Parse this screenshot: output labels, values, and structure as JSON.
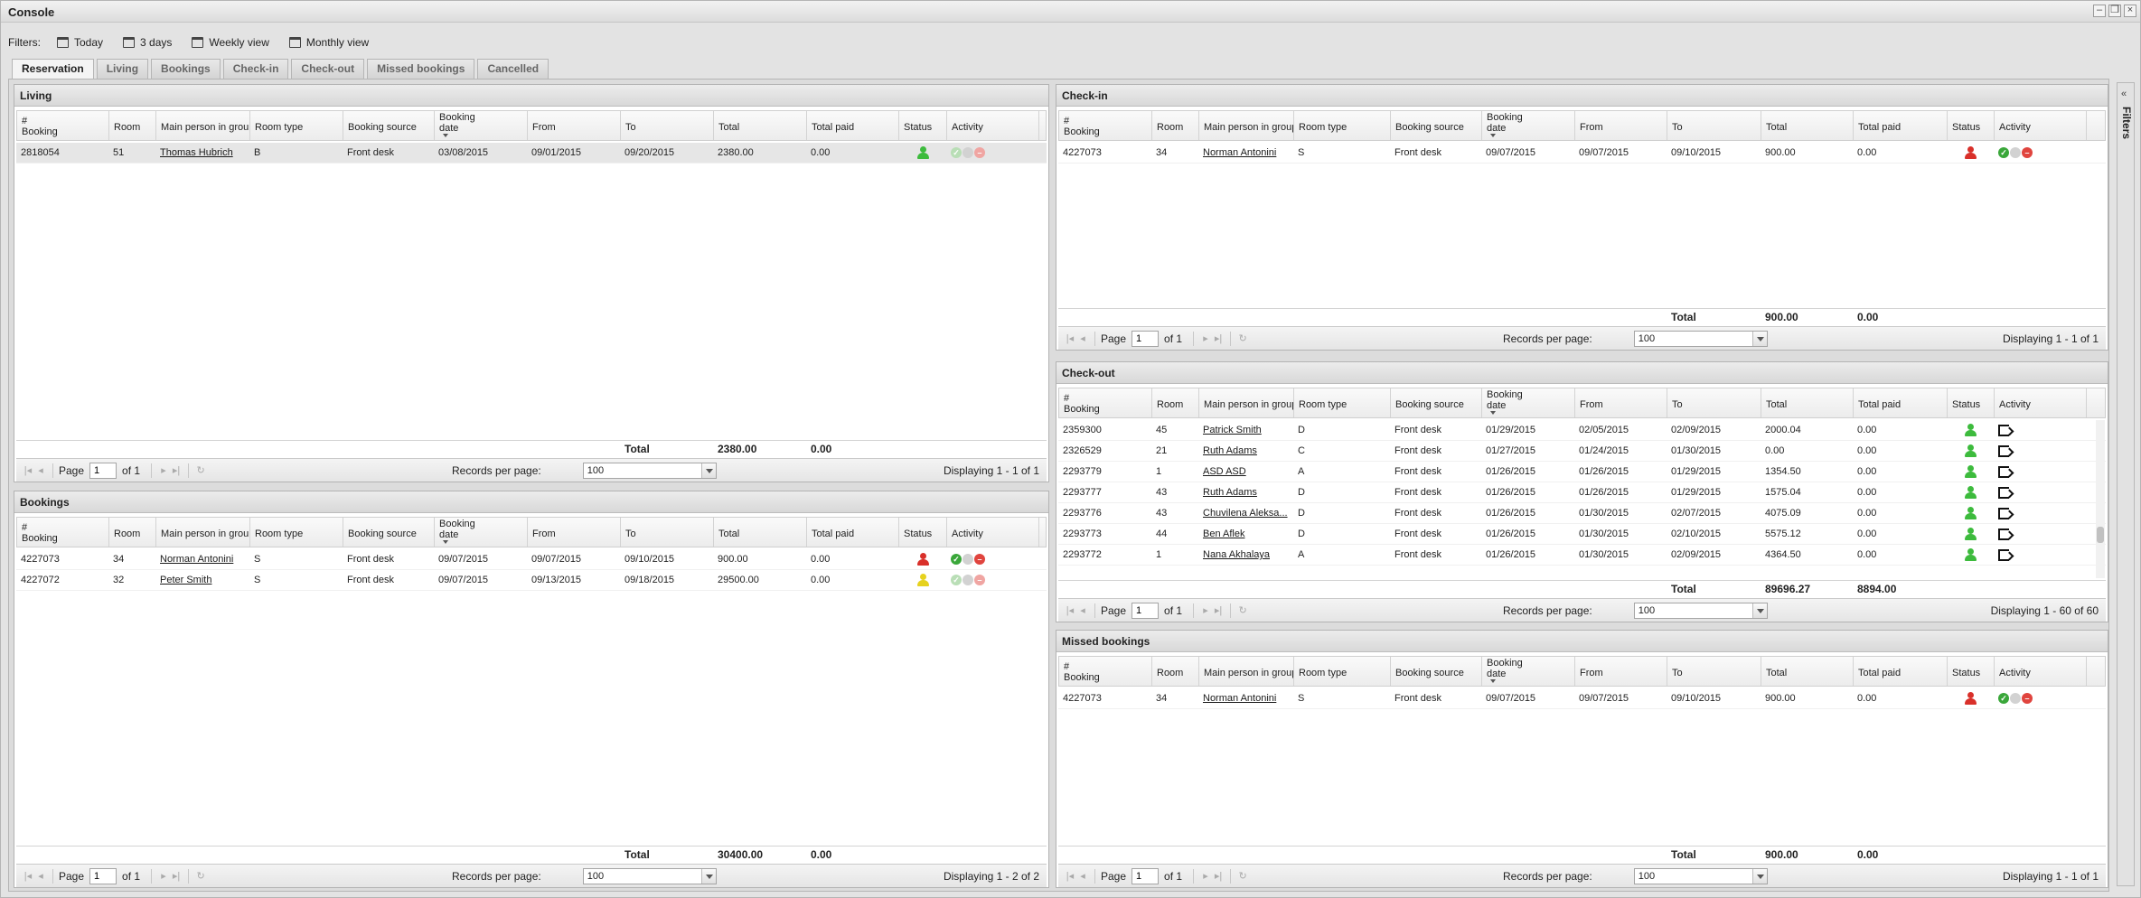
{
  "window": {
    "title": "Console"
  },
  "filters": {
    "label": "Filters:",
    "options": [
      "Today",
      "3 days",
      "Weekly view",
      "Monthly view"
    ]
  },
  "tabs": [
    "Reservation",
    "Living",
    "Bookings",
    "Check-in",
    "Check-out",
    "Missed bookings",
    "Cancelled"
  ],
  "sidebar": {
    "label": "Filters"
  },
  "columns": {
    "booking": [
      "#",
      "Booking"
    ],
    "room": "Room",
    "main_person": "Main person in group",
    "room_type": "Room type",
    "booking_source": "Booking source",
    "booking_date": [
      "Booking",
      "date"
    ],
    "from": "From",
    "to": "To",
    "total": "Total",
    "total_paid": "Total paid",
    "status": "Status",
    "activity": "Activity"
  },
  "pager": {
    "page_label": "Page",
    "rpp_label": "Records per page:",
    "rpp_value": "100",
    "total_label": "Total"
  },
  "panels": {
    "living": {
      "title": "Living",
      "rows": [
        {
          "booking": "2818054",
          "room": "51",
          "person": "Thomas Hubrich",
          "room_type": "B",
          "source": "Front desk",
          "booking_date": "03/08/2015",
          "from": "09/01/2015",
          "to": "09/20/2015",
          "total": "2380.00",
          "paid": "0.00",
          "status": "green",
          "activity": "dim"
        }
      ],
      "total": "2380.00",
      "total_paid": "0.00",
      "page": "1",
      "of": "of 1",
      "displaying": "Displaying 1 - 1 of 1"
    },
    "bookings": {
      "title": "Bookings",
      "rows": [
        {
          "booking": "4227073",
          "room": "34",
          "person": "Norman Antonini",
          "room_type": "S",
          "source": "Front desk",
          "booking_date": "09/07/2015",
          "from": "09/07/2015",
          "to": "09/10/2015",
          "total": "900.00",
          "paid": "0.00",
          "status": "red",
          "activity": "full"
        },
        {
          "booking": "4227072",
          "room": "32",
          "person": "Peter Smith",
          "room_type": "S",
          "source": "Front desk",
          "booking_date": "09/07/2015",
          "from": "09/13/2015",
          "to": "09/18/2015",
          "total": "29500.00",
          "paid": "0.00",
          "status": "yellow",
          "activity": "dim"
        }
      ],
      "total": "30400.00",
      "total_paid": "0.00",
      "page": "1",
      "of": "of 1",
      "displaying": "Displaying 1 - 2 of 2"
    },
    "checkin": {
      "title": "Check-in",
      "rows": [
        {
          "booking": "4227073",
          "room": "34",
          "person": "Norman Antonini",
          "room_type": "S",
          "source": "Front desk",
          "booking_date": "09/07/2015",
          "from": "09/07/2015",
          "to": "09/10/2015",
          "total": "900.00",
          "paid": "0.00",
          "status": "red",
          "activity": "full"
        }
      ],
      "total": "900.00",
      "total_paid": "0.00",
      "page": "1",
      "of": "of 1",
      "displaying": "Displaying 1 - 1 of 1"
    },
    "checkout": {
      "title": "Check-out",
      "rows": [
        {
          "booking": "2359300",
          "room": "45",
          "person": "Patrick Smith",
          "room_type": "D",
          "source": "Front desk",
          "booking_date": "01/29/2015",
          "from": "02/05/2015",
          "to": "02/09/2015",
          "total": "2000.04",
          "paid": "0.00",
          "status": "green",
          "activity": "door"
        },
        {
          "booking": "2326529",
          "room": "21",
          "person": "Ruth Adams",
          "room_type": "C",
          "source": "Front desk",
          "booking_date": "01/27/2015",
          "from": "01/24/2015",
          "to": "01/30/2015",
          "total": "0.00",
          "paid": "0.00",
          "status": "green",
          "activity": "door"
        },
        {
          "booking": "2293779",
          "room": "1",
          "person": "ASD ASD",
          "room_type": "A",
          "source": "Front desk",
          "booking_date": "01/26/2015",
          "from": "01/26/2015",
          "to": "01/29/2015",
          "total": "1354.50",
          "paid": "0.00",
          "status": "green",
          "activity": "door"
        },
        {
          "booking": "2293777",
          "room": "43",
          "person": "Ruth Adams",
          "room_type": "D",
          "source": "Front desk",
          "booking_date": "01/26/2015",
          "from": "01/26/2015",
          "to": "01/29/2015",
          "total": "1575.04",
          "paid": "0.00",
          "status": "green",
          "activity": "door"
        },
        {
          "booking": "2293776",
          "room": "43",
          "person": "Chuvilena Aleksa...",
          "room_type": "D",
          "source": "Front desk",
          "booking_date": "01/26/2015",
          "from": "01/30/2015",
          "to": "02/07/2015",
          "total": "4075.09",
          "paid": "0.00",
          "status": "green",
          "activity": "door"
        },
        {
          "booking": "2293773",
          "room": "44",
          "person": "Ben Aflek",
          "room_type": "D",
          "source": "Front desk",
          "booking_date": "01/26/2015",
          "from": "01/30/2015",
          "to": "02/10/2015",
          "total": "5575.12",
          "paid": "0.00",
          "status": "green",
          "activity": "door"
        },
        {
          "booking": "2293772",
          "room": "1",
          "person": "Nana Akhalaya",
          "room_type": "A",
          "source": "Front desk",
          "booking_date": "01/26/2015",
          "from": "01/30/2015",
          "to": "02/09/2015",
          "total": "4364.50",
          "paid": "0.00",
          "status": "green",
          "activity": "door"
        }
      ],
      "total": "89696.27",
      "total_paid": "8894.00",
      "page": "1",
      "of": "of 1",
      "displaying": "Displaying 1 - 60 of 60"
    },
    "missed": {
      "title": "Missed bookings",
      "rows": [
        {
          "booking": "4227073",
          "room": "34",
          "person": "Norman Antonini",
          "room_type": "S",
          "source": "Front desk",
          "booking_date": "09/07/2015",
          "from": "09/07/2015",
          "to": "09/10/2015",
          "total": "900.00",
          "paid": "0.00",
          "status": "red",
          "activity": "full"
        }
      ],
      "total": "900.00",
      "total_paid": "0.00",
      "page": "1",
      "of": "of 1",
      "displaying": "Displaying 1 - 1 of 1"
    }
  },
  "colors": {
    "green": "#3dbb3d",
    "red": "#d9302a",
    "yellow": "#e6d21e"
  }
}
